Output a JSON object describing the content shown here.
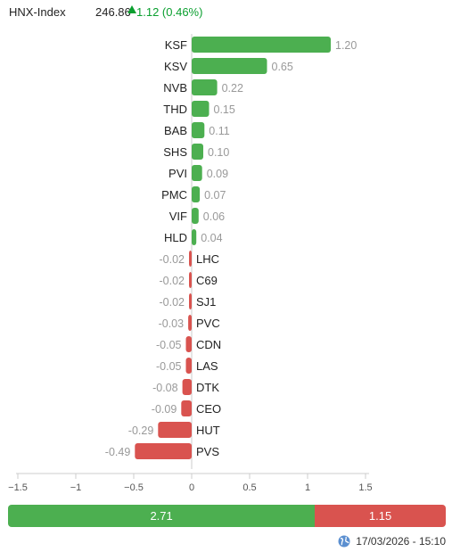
{
  "header": {
    "index_name": "HNX-Index",
    "index_value": "246.86",
    "change_text": "1.12 (0.46%)",
    "up_color": "#0a9f2f"
  },
  "chart_data": {
    "type": "bar",
    "orientation": "horizontal",
    "categories": [
      "KSF",
      "KSV",
      "NVB",
      "THD",
      "BAB",
      "SHS",
      "PVI",
      "PMC",
      "VIF",
      "HLD",
      "LHC",
      "C69",
      "SJ1",
      "PVC",
      "CDN",
      "LAS",
      "DTK",
      "CEO",
      "HUT",
      "PVS"
    ],
    "values": [
      1.2,
      0.65,
      0.22,
      0.15,
      0.11,
      0.1,
      0.09,
      0.07,
      0.06,
      0.04,
      -0.02,
      -0.02,
      -0.02,
      -0.03,
      -0.05,
      -0.05,
      -0.08,
      -0.09,
      -0.29,
      -0.49
    ],
    "value_labels": [
      "1.20",
      "0.65",
      "0.22",
      "0.15",
      "0.11",
      "0.10",
      "0.09",
      "0.07",
      "0.06",
      "0.04",
      "-0.02",
      "-0.02",
      "-0.02",
      "-0.03",
      "-0.05",
      "-0.05",
      "-0.08",
      "-0.09",
      "-0.29",
      "-0.49"
    ],
    "xlim": [
      -1.5,
      1.5
    ],
    "x_ticks": [
      "-1.5",
      "-1",
      "-0.5",
      "0",
      "0.5",
      "1",
      "1.5"
    ],
    "grid": false,
    "colors": {
      "positive": "#4caf50",
      "negative": "#d9534f",
      "axis": "#cccccc",
      "label": "#999999"
    }
  },
  "summary": {
    "up_value": "2.71",
    "down_value": "1.15",
    "up_fraction": 0.701
  },
  "footer": {
    "timestamp": "17/03/2026 - 15:10",
    "icon": "globe-icon"
  }
}
